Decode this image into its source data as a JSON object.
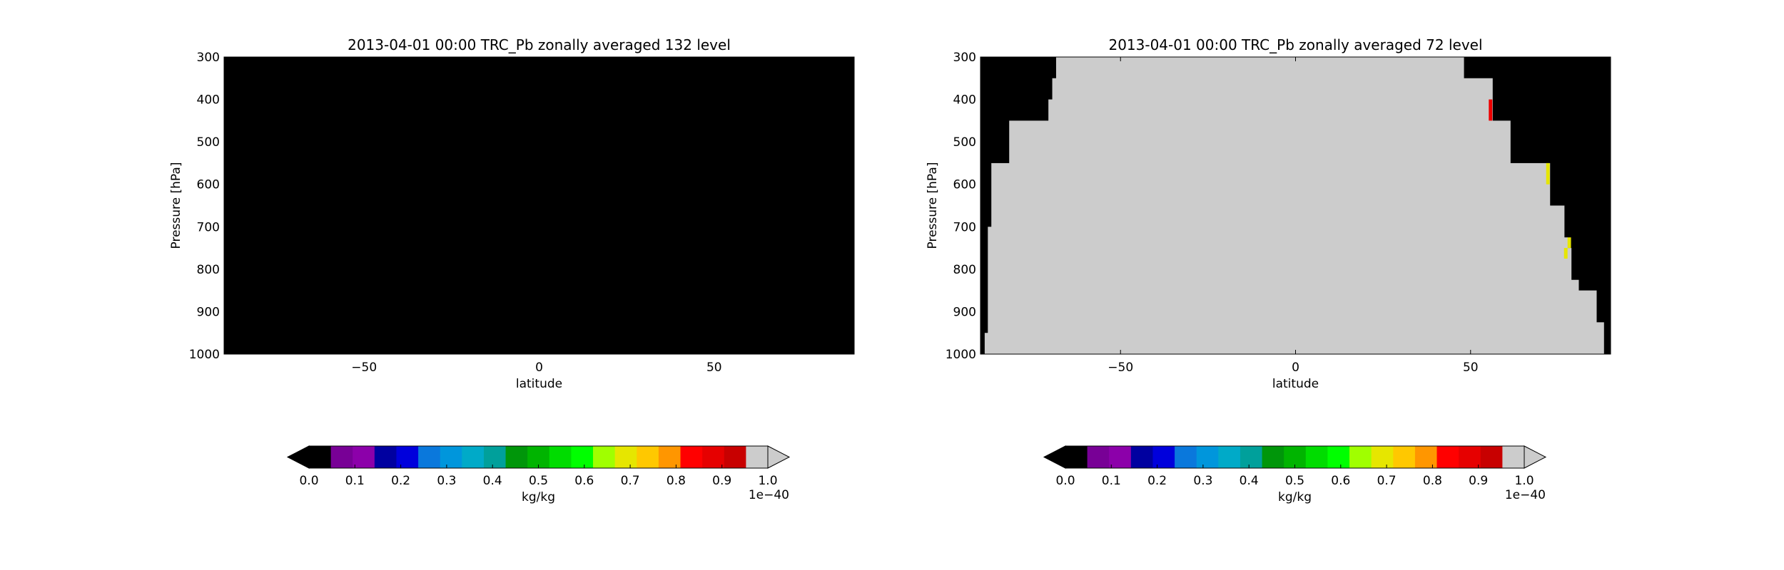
{
  "chart_data": [
    {
      "type": "heatmap",
      "title": "2013-04-01 00:00 TRC_Pb zonally averaged 132 level",
      "xlabel": "latitude",
      "ylabel": "Pressure [hPa]",
      "xlim": [
        -90,
        90
      ],
      "ylim": [
        1000,
        300
      ],
      "xticks": [
        "−50",
        "0",
        "50"
      ],
      "yticks": [
        "300",
        "400",
        "500",
        "600",
        "700",
        "800",
        "900",
        "1000"
      ],
      "background_color": "#000000",
      "columns": [],
      "highlights": []
    },
    {
      "type": "heatmap",
      "title": "2013-04-01 00:00 TRC_Pb zonally averaged 72 level",
      "xlabel": "latitude",
      "ylabel": "Pressure [hPa]",
      "xlim": [
        -90,
        90
      ],
      "ylim": [
        1000,
        300
      ],
      "xticks": [
        "−50",
        "0",
        "50"
      ],
      "yticks": [
        "300",
        "400",
        "500",
        "600",
        "700",
        "800",
        "900",
        "1000"
      ],
      "background_color": "#000000",
      "fill_color": "#cccccc",
      "columns": [
        {
          "lat0": -88.8,
          "lat1": -87.9,
          "p_top": 950
        },
        {
          "lat0": -87.9,
          "lat1": -86.9,
          "p_top": 700
        },
        {
          "lat0": -86.9,
          "lat1": -81.8,
          "p_top": 550
        },
        {
          "lat0": -81.8,
          "lat1": -70.6,
          "p_top": 450
        },
        {
          "lat0": -70.6,
          "lat1": -69.5,
          "p_top": 400
        },
        {
          "lat0": -69.5,
          "lat1": -68.4,
          "p_top": 350
        },
        {
          "lat0": -68.4,
          "lat1": 48.0,
          "p_top": 300
        },
        {
          "lat0": 48.0,
          "lat1": 56.2,
          "p_top": 350
        },
        {
          "lat0": 56.2,
          "lat1": 61.3,
          "p_top": 450
        },
        {
          "lat0": 61.3,
          "lat1": 72.6,
          "p_top": 550
        },
        {
          "lat0": 72.6,
          "lat1": 76.7,
          "p_top": 650
        },
        {
          "lat0": 76.7,
          "lat1": 77.7,
          "p_top": 725
        },
        {
          "lat0": 77.7,
          "lat1": 78.7,
          "p_top": 750
        },
        {
          "lat0": 78.7,
          "lat1": 80.8,
          "p_top": 825
        },
        {
          "lat0": 80.8,
          "lat1": 85.9,
          "p_top": 850
        },
        {
          "lat0": 85.9,
          "lat1": 88.0,
          "p_top": 925
        },
        {
          "lat0": 88.0,
          "lat1": 89.0,
          "p_top": 1000
        }
      ],
      "highlights": [
        {
          "lat0": 55.2,
          "lat1": 56.2,
          "p_top": 400,
          "p_bottom": 450,
          "color": "#ee0000"
        },
        {
          "lat0": 71.6,
          "lat1": 72.6,
          "p_top": 550,
          "p_bottom": 600,
          "color": "#e6e600"
        },
        {
          "lat0": 77.7,
          "lat1": 78.7,
          "p_top": 725,
          "p_bottom": 750,
          "color": "#e6e600"
        },
        {
          "lat0": 76.7,
          "lat1": 77.7,
          "p_top": 750,
          "p_bottom": 775,
          "color": "#e6e600"
        }
      ]
    }
  ],
  "colorbar": {
    "label": "kg/kg",
    "multiplier": "1e−40",
    "tick_labels": [
      "0.0",
      "0.1",
      "0.2",
      "0.3",
      "0.4",
      "0.5",
      "0.6",
      "0.7",
      "0.8",
      "0.9",
      "1.0"
    ],
    "under_color": "#000000",
    "over_color": "#cccccc",
    "colors": [
      "#000000",
      "#780096",
      "#8c00aa",
      "#0000a0",
      "#0000dc",
      "#0a78dc",
      "#0096dc",
      "#00aac8",
      "#00a09b",
      "#00960a",
      "#00b400",
      "#00dc00",
      "#00ff00",
      "#a0ff00",
      "#e6e600",
      "#ffc800",
      "#ff9600",
      "#ff0000",
      "#e60000",
      "#c80000",
      "#cccccc"
    ]
  }
}
